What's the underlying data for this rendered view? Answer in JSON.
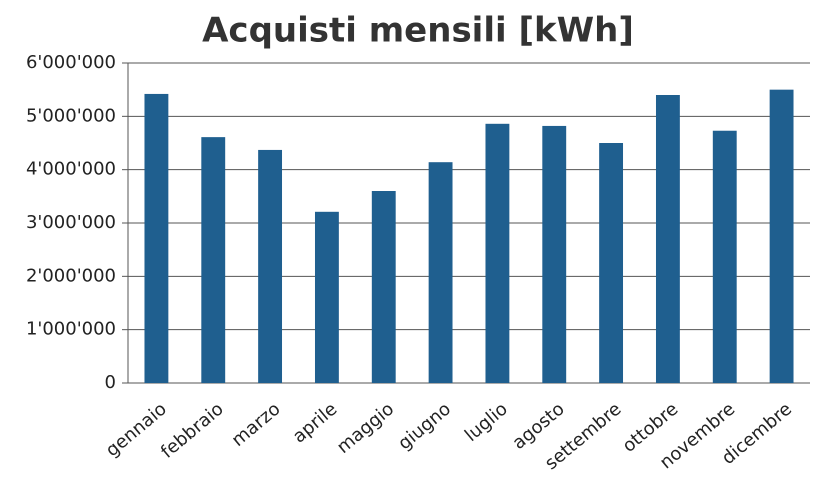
{
  "chart_data": {
    "type": "bar",
    "title": "Acquisti mensili [kWh]",
    "categories": [
      "gennaio",
      "febbraio",
      "marzo",
      "aprile",
      "maggio",
      "giugno",
      "luglio",
      "agosto",
      "settembre",
      "ottobre",
      "novembre",
      "dicembre"
    ],
    "values": [
      5420000,
      4610000,
      4370000,
      3210000,
      3600000,
      4140000,
      4860000,
      4820000,
      4500000,
      5400000,
      4730000,
      5500000
    ],
    "color": "#1f5f8f",
    "ylim": [
      0,
      6000000
    ],
    "yticks": [
      0,
      {
        "value": 1000000,
        "label": "1'000'000"
      },
      {
        "value": 2000000,
        "label": "2'000'000"
      },
      {
        "value": 3000000,
        "label": "3'000'000"
      },
      {
        "value": 4000000,
        "label": "4'000'000"
      },
      {
        "value": 5000000,
        "label": "5'000'000"
      },
      {
        "value": 6000000,
        "label": "6'000'000"
      }
    ],
    "grid": true
  }
}
